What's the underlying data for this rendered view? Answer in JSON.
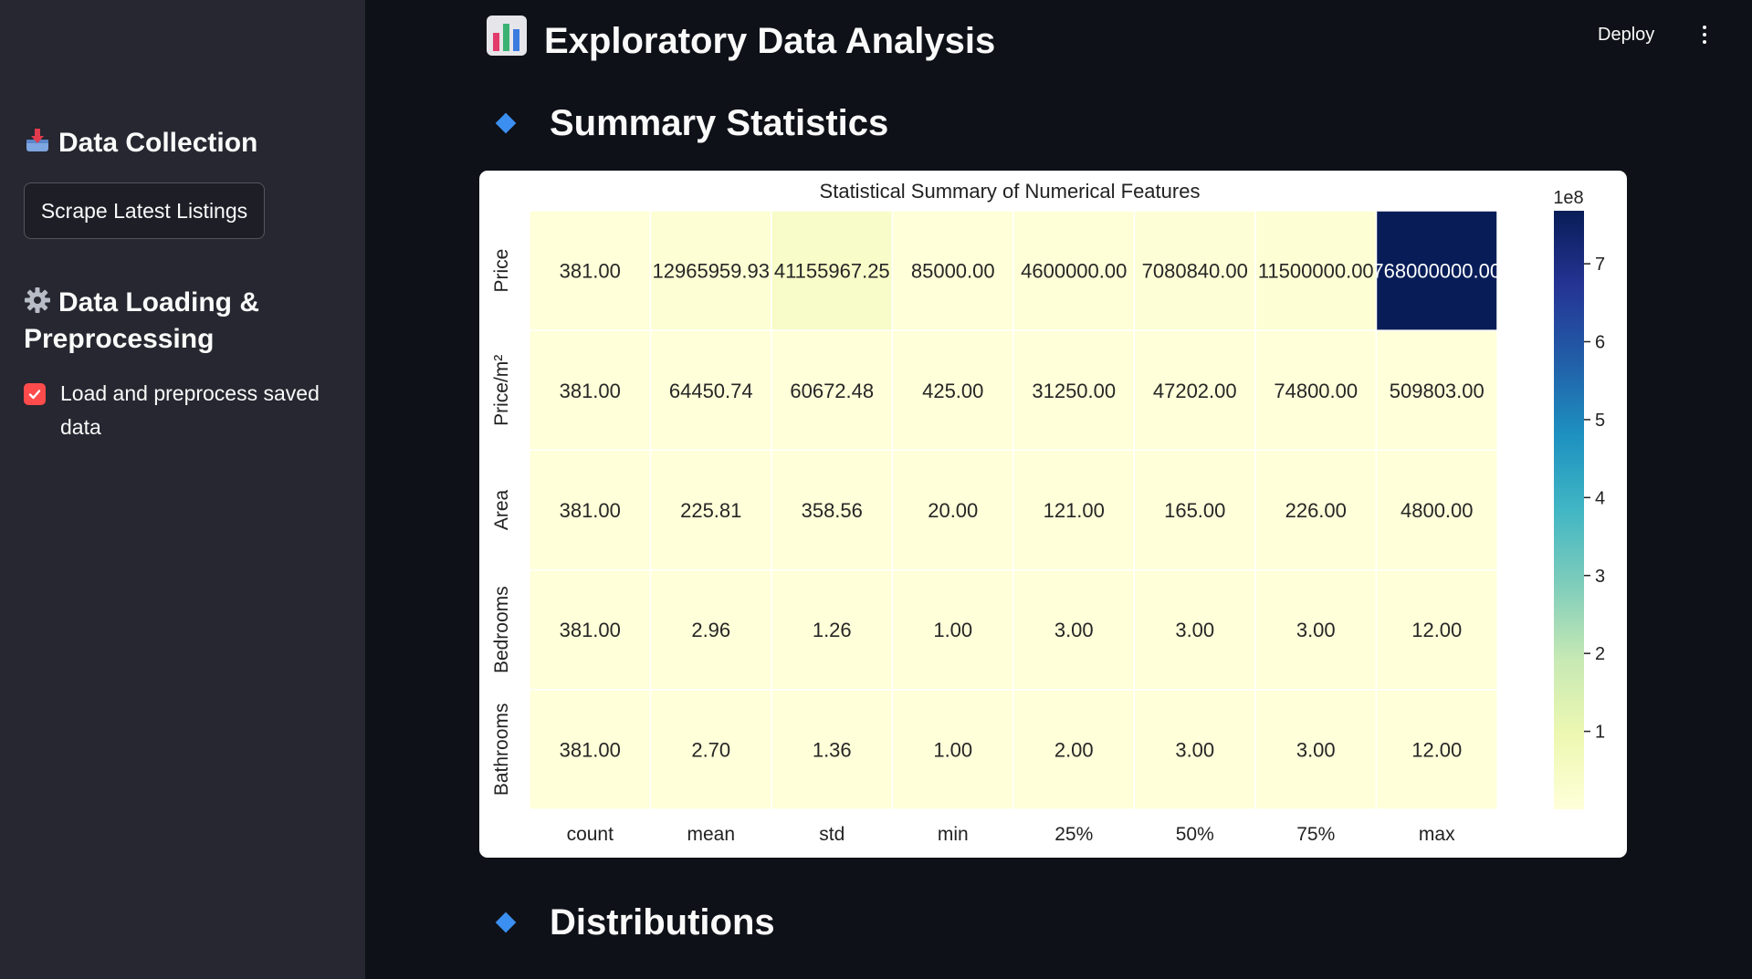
{
  "sidebar": {
    "data_collection_title": "Data Collection",
    "scrape_button_label": "Scrape Latest Listings",
    "data_loading_title_line1": "Data Loading &",
    "data_loading_title_line2": "Preprocessing",
    "checkbox_label_line1": "Load and preprocess saved",
    "checkbox_label_line2": "data",
    "checkbox_checked": true
  },
  "header": {
    "title": "Exploratory Data Analysis",
    "deploy_label": "Deploy"
  },
  "sections": {
    "summary_title": "Summary Statistics",
    "distributions_title": "Distributions"
  },
  "colors": {
    "accent": "#ff4b4b",
    "diamond": "#3b8ff0",
    "heat_low": "#ffffd9",
    "heat_high": "#081d58"
  },
  "chart_data": {
    "type": "heatmap",
    "title": "Statistical Summary of Numerical Features",
    "columns": [
      "count",
      "mean",
      "std",
      "min",
      "25%",
      "50%",
      "75%",
      "max"
    ],
    "rows": [
      "Price",
      "Price/m²",
      "Area",
      "Bedrooms",
      "Bathrooms"
    ],
    "values": [
      [
        381,
        12965959.93,
        41155967.25,
        85000,
        4600000,
        7080840,
        11500000,
        768000000
      ],
      [
        381,
        64450.74,
        60672.48,
        425,
        31250,
        47202,
        74800,
        509803
      ],
      [
        381,
        225.81,
        358.56,
        20,
        121,
        165,
        226,
        4800
      ],
      [
        381,
        2.96,
        1.26,
        1,
        3,
        3,
        3,
        12
      ],
      [
        381,
        2.7,
        1.36,
        1,
        2,
        3,
        3,
        12
      ]
    ],
    "labels": [
      [
        "381.00",
        "12965959.93",
        "41155967.25",
        "85000.00",
        "4600000.00",
        "7080840.00",
        "11500000.00",
        "768000000.00"
      ],
      [
        "381.00",
        "64450.74",
        "60672.48",
        "425.00",
        "31250.00",
        "47202.00",
        "74800.00",
        "509803.00"
      ],
      [
        "381.00",
        "225.81",
        "358.56",
        "20.00",
        "121.00",
        "165.00",
        "226.00",
        "4800.00"
      ],
      [
        "381.00",
        "2.96",
        "1.26",
        "1.00",
        "3.00",
        "3.00",
        "3.00",
        "12.00"
      ],
      [
        "381.00",
        "2.70",
        "1.36",
        "1.00",
        "2.00",
        "3.00",
        "3.00",
        "12.00"
      ]
    ],
    "colorbar": {
      "multiplier_label": "1e8",
      "ticks": [
        1,
        2,
        3,
        4,
        5,
        6,
        7
      ],
      "vmin": 1,
      "vmax": 768000000,
      "scale": 100000000
    }
  }
}
